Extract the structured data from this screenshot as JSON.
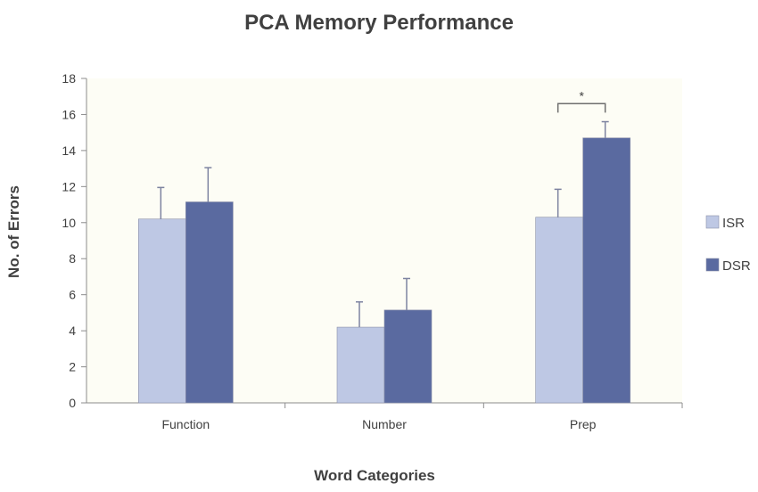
{
  "chart_data": {
    "type": "bar",
    "title": "PCA Memory Performance",
    "xlabel": "Word Categories",
    "ylabel": "No. of Errors",
    "categories": [
      "Function",
      "Number",
      "Prep"
    ],
    "ylim": [
      0,
      18
    ],
    "yticks": [
      0,
      2,
      4,
      6,
      8,
      10,
      12,
      14,
      16,
      18
    ],
    "grid": false,
    "legend_position": "right",
    "series": [
      {
        "name": "ISR",
        "color": "#bec8e4",
        "values": [
          10.2,
          4.2,
          10.3
        ],
        "errors": [
          1.75,
          1.4,
          1.55
        ]
      },
      {
        "name": "DSR",
        "color": "#5a6aa0",
        "values": [
          11.15,
          5.15,
          14.7
        ],
        "errors": [
          1.9,
          1.75,
          0.9
        ]
      }
    ],
    "annotations": [
      {
        "text": "*",
        "category": "Prep",
        "between": [
          "ISR",
          "DSR"
        ]
      }
    ]
  }
}
